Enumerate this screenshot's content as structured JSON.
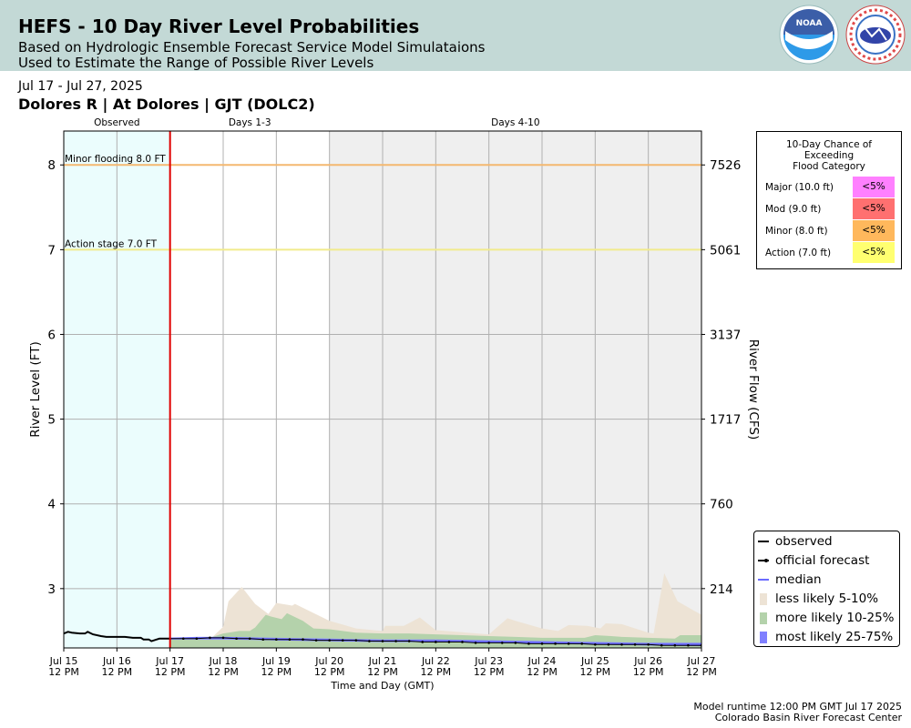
{
  "header": {
    "title": "HEFS - 10 Day River Level Probabilities",
    "subtitle_line1": "Based on Hydrologic Ensemble Forecast Service Model Simulataions",
    "subtitle_line2": "Used to Estimate the Range of Possible River Levels",
    "logos": {
      "noaa": "noaa-logo",
      "nws": "nws-logo"
    }
  },
  "date_range": "Jul 17 - Jul 27, 2025",
  "station": "Dolores R | At Dolores | GJT (DOLC2)",
  "footer": {
    "runtime": "Model runtime 12:00 PM GMT Jul 17 2025",
    "center": "Colorado Basin River Forecast Center"
  },
  "probability_table": {
    "title_lines": [
      "10-Day Chance of",
      "Exceeding",
      "Flood Category"
    ],
    "rows": [
      {
        "name": "Major (10.0 ft)",
        "value": "<5%",
        "color": "#ff80ff"
      },
      {
        "name": "Mod (9.0 ft)",
        "value": "<5%",
        "color": "#ff7070"
      },
      {
        "name": "Minor (8.0 ft)",
        "value": "<5%",
        "color": "#ffb85c"
      },
      {
        "name": "Action (7.0 ft)",
        "value": "<5%",
        "color": "#ffff70"
      }
    ]
  },
  "legend": [
    {
      "label": "observed",
      "symbol": "line",
      "color": "#000000"
    },
    {
      "label": "official forecast",
      "symbol": "line-dot",
      "color": "#000000"
    },
    {
      "label": "median",
      "symbol": "line",
      "color": "#6a6aff"
    },
    {
      "label": "less likely 5-10%",
      "symbol": "patch",
      "color": "#ede3d5"
    },
    {
      "label": "more likely 10-25%",
      "symbol": "patch",
      "color": "#b4d2ab"
    },
    {
      "label": "most likely 25-75%",
      "symbol": "patch",
      "color": "#8080ff"
    }
  ],
  "chart_data": {
    "type": "area",
    "xlabel": "Time and Day (GMT)",
    "ylabel": "River Level (FT)",
    "ylabel_right": "River Flow (CFS)",
    "xlim": [
      0,
      12
    ],
    "ylim": [
      2.3,
      8.4
    ],
    "x_tick_labels": [
      [
        "Jul 15",
        "12 PM"
      ],
      [
        "Jul 16",
        "12 PM"
      ],
      [
        "Jul 17",
        "12 PM"
      ],
      [
        "Jul 18",
        "12 PM"
      ],
      [
        "Jul 19",
        "12 PM"
      ],
      [
        "Jul 20",
        "12 PM"
      ],
      [
        "Jul 21",
        "12 PM"
      ],
      [
        "Jul 22",
        "12 PM"
      ],
      [
        "Jul 23",
        "12 PM"
      ],
      [
        "Jul 24",
        "12 PM"
      ],
      [
        "Jul 25",
        "12 PM"
      ],
      [
        "Jul 26",
        "12 PM"
      ],
      [
        "Jul 27",
        "12 PM"
      ]
    ],
    "y_ticks": [
      3,
      4,
      5,
      6,
      7,
      8
    ],
    "y2_ticks": [
      {
        "stage": 3,
        "label": "214"
      },
      {
        "stage": 4,
        "label": "760"
      },
      {
        "stage": 5,
        "label": "1717"
      },
      {
        "stage": 6,
        "label": "3137"
      },
      {
        "stage": 7,
        "label": "5061"
      },
      {
        "stage": 8,
        "label": "7526"
      }
    ],
    "grid": true,
    "legend_position": "bottom-right",
    "regions": [
      {
        "label": "Observed",
        "from": 0,
        "to": 2,
        "color": "#ebfdfd"
      },
      {
        "label": "Days 1-3",
        "from": 2,
        "to": 5,
        "color": "#ffffff"
      },
      {
        "label": "Days 4-10",
        "from": 5,
        "to": 12,
        "color": "#efefef"
      }
    ],
    "forecast_start": 2,
    "thresholds": [
      {
        "label": "Minor flooding 8.0 FT",
        "value": 8.0,
        "color": "#f4b870"
      },
      {
        "label": "Action stage 7.0 FT",
        "value": 7.0,
        "color": "#f1eb8c"
      }
    ],
    "observed": {
      "x": [
        0,
        0.08,
        0.15,
        0.3,
        0.4,
        0.45,
        0.55,
        0.7,
        0.8,
        1.0,
        1.15,
        1.3,
        1.45,
        1.5,
        1.6,
        1.65,
        1.75,
        1.8,
        2.0
      ],
      "y": [
        2.47,
        2.49,
        2.48,
        2.47,
        2.47,
        2.49,
        2.46,
        2.44,
        2.43,
        2.43,
        2.43,
        2.42,
        2.42,
        2.4,
        2.4,
        2.38,
        2.4,
        2.41,
        2.41
      ]
    },
    "official_forecast": {
      "x": [
        2,
        2.25,
        2.5,
        2.75,
        3,
        3.25,
        3.5,
        3.75,
        4,
        4.25,
        4.5,
        4.75,
        5,
        5.25,
        5.5,
        5.75,
        6,
        6.25,
        6.5,
        6.75,
        7,
        7.25,
        7.5,
        7.75,
        8,
        8.25,
        8.5,
        8.75,
        9,
        9.25,
        9.5,
        9.75,
        10,
        10.25,
        10.5,
        10.75,
        11,
        11.25,
        11.5,
        11.75,
        12
      ],
      "y": [
        2.41,
        2.41,
        2.41,
        2.42,
        2.42,
        2.41,
        2.41,
        2.4,
        2.4,
        2.4,
        2.4,
        2.39,
        2.39,
        2.39,
        2.39,
        2.38,
        2.38,
        2.38,
        2.38,
        2.37,
        2.37,
        2.37,
        2.37,
        2.36,
        2.36,
        2.36,
        2.36,
        2.35,
        2.35,
        2.35,
        2.35,
        2.35,
        2.34,
        2.34,
        2.34,
        2.34,
        2.34,
        2.33,
        2.33,
        2.33,
        2.33
      ]
    },
    "median": {
      "x": [
        2,
        2.5,
        3,
        3.5,
        4,
        5,
        6,
        7,
        8,
        9,
        10,
        11,
        12
      ],
      "y": [
        2.41,
        2.42,
        2.42,
        2.41,
        2.4,
        2.39,
        2.38,
        2.38,
        2.37,
        2.36,
        2.35,
        2.34,
        2.34
      ]
    },
    "band_25_75": {
      "x": [
        2,
        3,
        4,
        5,
        6,
        7,
        8,
        9,
        10,
        11,
        12
      ],
      "lower": [
        2.4,
        2.4,
        2.39,
        2.38,
        2.37,
        2.37,
        2.36,
        2.35,
        2.34,
        2.33,
        2.32
      ],
      "upper": [
        2.42,
        2.43,
        2.42,
        2.41,
        2.4,
        2.4,
        2.39,
        2.38,
        2.37,
        2.36,
        2.36
      ]
    },
    "band_10_25": {
      "x": [
        2,
        2.8,
        3,
        3.3,
        3.5,
        3.6,
        3.8,
        3.9,
        4.1,
        4.2,
        4.5,
        4.7,
        5.0,
        5.5,
        6,
        6.5,
        7,
        7.5,
        8,
        8.5,
        9,
        9.5,
        9.8,
        10,
        10.3,
        10.5,
        11,
        11.5,
        11.6,
        12
      ],
      "upper": [
        2.42,
        2.43,
        2.47,
        2.5,
        2.5,
        2.54,
        2.69,
        2.67,
        2.64,
        2.71,
        2.62,
        2.53,
        2.52,
        2.48,
        2.47,
        2.47,
        2.46,
        2.45,
        2.44,
        2.43,
        2.42,
        2.42,
        2.42,
        2.45,
        2.44,
        2.43,
        2.42,
        2.41,
        2.45,
        2.45
      ]
    },
    "band_5_10": {
      "x": [
        2,
        2.8,
        3.0,
        3.1,
        3.35,
        3.6,
        3.85,
        4.0,
        4.3,
        4.35,
        5.0,
        5.5,
        6.0,
        6.05,
        6.4,
        6.7,
        7.0,
        8.0,
        8.35,
        8.5,
        9.0,
        9.3,
        9.5,
        9.85,
        10.1,
        10.2,
        10.5,
        11.0,
        11.1,
        11.3,
        11.55,
        12.0
      ],
      "upper": [
        2.42,
        2.43,
        2.55,
        2.85,
        3.02,
        2.82,
        2.7,
        2.83,
        2.8,
        2.82,
        2.62,
        2.53,
        2.5,
        2.56,
        2.56,
        2.66,
        2.51,
        2.46,
        2.65,
        2.62,
        2.53,
        2.5,
        2.57,
        2.56,
        2.53,
        2.59,
        2.58,
        2.48,
        2.47,
        3.18,
        2.85,
        2.69
      ]
    }
  }
}
